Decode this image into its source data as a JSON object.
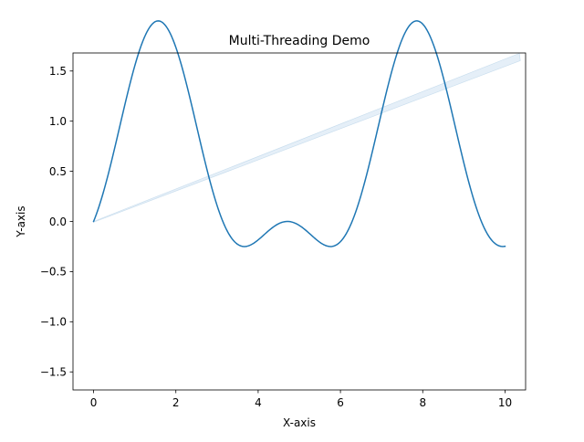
{
  "chart_data": {
    "type": "line",
    "title": "Multi-Threading Demo",
    "xlabel": "X-axis",
    "ylabel": "Y-axis",
    "xlim": [
      -0.5,
      10.5
    ],
    "ylim": [
      -1.68,
      1.68
    ],
    "xticks": [
      0,
      2,
      4,
      6,
      8,
      10
    ],
    "xtick_labels": [
      "0",
      "2",
      "4",
      "6",
      "8",
      "10"
    ],
    "yticks": [
      -1.5,
      -1.0,
      -0.5,
      0.0,
      0.5,
      1.0,
      1.5
    ],
    "ytick_labels": [
      "−1.5",
      "−1.0",
      "−0.5",
      "0.0",
      "0.5",
      "1.0",
      "1.5"
    ],
    "grid": false,
    "series": [
      {
        "color": "#1f77b4",
        "x_range": [
          0,
          10
        ],
        "y_function": "sin(x) + sin(x)^2",
        "samples": 300
      }
    ],
    "annotations": [
      {
        "kind": "faint diagonal band",
        "x": [
          0,
          10.35
        ],
        "y": [
          0.0,
          1.64
        ],
        "color": "#c6dbef"
      }
    ]
  }
}
